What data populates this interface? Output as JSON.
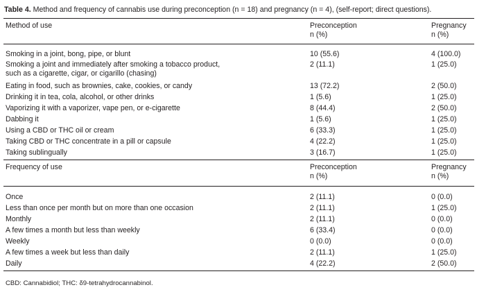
{
  "caption": {
    "label": "Table 4.",
    "text": "Method and frequency of cannabis use during preconception (n = 18) and pregnancy (n = 4), (self-report; direct questions)."
  },
  "method_header": {
    "col1": "Method of use",
    "col2_line1": "Preconception",
    "col2_line2": "n (%)",
    "col3_line1": "Pregnancy",
    "col3_line2": "n (%)"
  },
  "methods": [
    {
      "label": "Smoking in a joint, bong, pipe, or blunt",
      "pre": "10 (55.6)",
      "preg": "4 (100.0)"
    },
    {
      "label": "Smoking a joint and immediately after smoking a tobacco product,",
      "label2": "such as a cigarette, cigar, or cigarillo (chasing)",
      "pre": "2 (11.1)",
      "preg": "1 (25.0)"
    },
    {
      "label": "Eating in food, such as brownies, cake, cookies, or candy",
      "pre": "13 (72.2)",
      "preg": "2 (50.0)"
    },
    {
      "label": "Drinking it in tea, cola, alcohol, or other drinks",
      "pre": "1 (5.6)",
      "preg": "1 (25.0)"
    },
    {
      "label": "Vaporizing it with a vaporizer, vape pen, or e-cigarette",
      "pre": "8 (44.4)",
      "preg": "2 (50.0)"
    },
    {
      "label": "Dabbing it",
      "pre": "1 (5.6)",
      "preg": "1 (25.0)"
    },
    {
      "label": "Using a CBD or THC oil or cream",
      "pre": "6 (33.3)",
      "preg": "1 (25.0)"
    },
    {
      "label": "Taking CBD or THC concentrate in a pill or capsule",
      "pre": "4 (22.2)",
      "preg": "1 (25.0)"
    },
    {
      "label": "Taking sublingually",
      "pre": "3 (16.7)",
      "preg": "1 (25.0)"
    }
  ],
  "frequency_header": {
    "col1": "Frequency of use",
    "col2_line1": "Preconception",
    "col2_line2": "n (%)",
    "col3_line1": "Pregnancy",
    "col3_line2": "n (%)"
  },
  "frequencies": [
    {
      "label": "Once",
      "pre": "2 (11.1)",
      "preg": "0 (0.0)"
    },
    {
      "label": "Less than once per month but on more than one occasion",
      "pre": "2 (11.1)",
      "preg": "1 (25.0)"
    },
    {
      "label": "Monthly",
      "pre": "2 (11.1)",
      "preg": "0 (0.0)"
    },
    {
      "label": "A few times a month but less than weekly",
      "pre": "6 (33.4)",
      "preg": "0 (0.0)"
    },
    {
      "label": "Weekly",
      "pre": "0 (0.0)",
      "preg": "0 (0.0)"
    },
    {
      "label": "A few times a week but less than daily",
      "pre": "2 (11.1)",
      "preg": "1 (25.0)"
    },
    {
      "label": "Daily",
      "pre": "4 (22.2)",
      "preg": "2 (50.0)"
    }
  ],
  "footnote": "CBD: Cannabidiol; THC: δ9-tetrahydrocannabinol."
}
